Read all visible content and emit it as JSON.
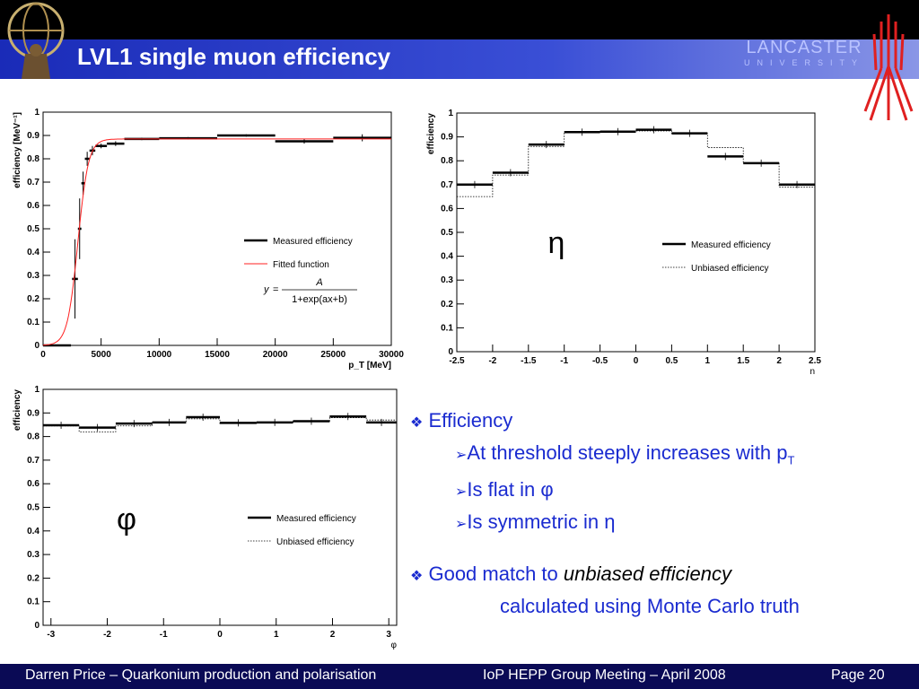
{
  "slide": {
    "title": "LVL1 single muon efficiency",
    "university": "LANCASTER",
    "university_sub": "UNIVERSITY",
    "colors": {
      "title_bar": "#2a3cc8",
      "bullets": "#1a2bd0",
      "footer": "#0a0a55",
      "fit_line": "#ff2020"
    }
  },
  "bullets": {
    "b1": "Efficiency",
    "b1_s1": "At threshold steeply increases with p",
    "b1_s1_sub": "T",
    "b1_s2": "Is flat in φ",
    "b1_s3": "Is symmetric in η",
    "b2_plain": "Good match to ",
    "b2_italic": "unbiased efficiency",
    "b2_line2": "calculated using Monte Carlo truth",
    "marker_diamond": "❖",
    "marker_arrow": "➢"
  },
  "footer": {
    "left": "Darren Price – Quarkonium production and polarisation",
    "center": "IoP HEPP Group Meeting – April 2008",
    "right": "Page 20"
  },
  "chart_data": [
    {
      "type": "scatter",
      "ylabel": "efficiency [MeV⁻¹]",
      "xlabel": "p_T [MeV]",
      "xlim": [
        0,
        30000
      ],
      "ylim": [
        0,
        1
      ],
      "xticks": [
        0,
        5000,
        10000,
        15000,
        20000,
        25000,
        30000
      ],
      "yticks": [
        0,
        0.1,
        0.2,
        0.3,
        0.4,
        0.5,
        0.6,
        0.7,
        0.8,
        0.9,
        1
      ],
      "legend": [
        "Measured efficiency",
        "Fitted function"
      ],
      "legend_position": "center-right",
      "formula": "y = A / (1 + exp(ax + b))",
      "formula_parts": {
        "y": "y",
        "eq": "=",
        "num": "A",
        "den": "1+exp(ax+b)"
      },
      "series": [
        {
          "name": "Measured efficiency",
          "points": [
            {
              "xlo": 0,
              "xhi": 2400,
              "y": 0.0,
              "err": 0.0
            },
            {
              "xlo": 2500,
              "xhi": 3000,
              "y": 0.285,
              "err": 0.17
            },
            {
              "xlo": 3000,
              "xhi": 3300,
              "y": 0.5,
              "err": 0.13
            },
            {
              "xlo": 3300,
              "xhi": 3600,
              "y": 0.695,
              "err": 0.05
            },
            {
              "xlo": 3600,
              "xhi": 4000,
              "y": 0.8,
              "err": 0.03
            },
            {
              "xlo": 4000,
              "xhi": 4500,
              "y": 0.835,
              "err": 0.02
            },
            {
              "xlo": 4500,
              "xhi": 5500,
              "y": 0.855,
              "err": 0.01
            },
            {
              "xlo": 5500,
              "xhi": 7000,
              "y": 0.865,
              "err": 0.01
            },
            {
              "xlo": 7000,
              "xhi": 10000,
              "y": 0.885,
              "err": 0.005
            },
            {
              "xlo": 10000,
              "xhi": 15000,
              "y": 0.888,
              "err": 0.005
            },
            {
              "xlo": 15000,
              "xhi": 20000,
              "y": 0.9,
              "err": 0.005
            },
            {
              "xlo": 20000,
              "xhi": 25000,
              "y": 0.875,
              "err": 0.01
            },
            {
              "xlo": 25000,
              "xhi": 30000,
              "y": 0.89,
              "err": 0.015
            }
          ]
        },
        {
          "name": "Fitted function",
          "A": 0.885,
          "a": -0.0022,
          "b": 6.6,
          "xrange": [
            0,
            30000
          ]
        }
      ]
    },
    {
      "type": "line",
      "ylabel": "efficiency",
      "xlabel": "η",
      "xlim": [
        -2.5,
        2.5
      ],
      "ylim": [
        0,
        1
      ],
      "xticks": [
        -2.5,
        -2,
        -1.5,
        -1,
        -0.5,
        0,
        0.5,
        1,
        1.5,
        2,
        2.5
      ],
      "yticks": [
        0,
        0.1,
        0.2,
        0.3,
        0.4,
        0.5,
        0.6,
        0.7,
        0.8,
        0.9,
        1
      ],
      "annotation": "η",
      "legend": [
        "Measured efficiency",
        "Unbiased efficiency"
      ],
      "legend_position": "center-right",
      "edges": [
        -2.5,
        -2,
        -1.5,
        -1,
        -0.5,
        0,
        0.5,
        1,
        1.5,
        2,
        2.5
      ],
      "series": [
        {
          "name": "Measured efficiency",
          "values": [
            0.7,
            0.75,
            0.868,
            0.92,
            0.922,
            0.93,
            0.915,
            0.818,
            0.79,
            0.7
          ]
        },
        {
          "name": "Unbiased efficiency",
          "values": [
            0.65,
            0.74,
            0.86,
            0.92,
            0.925,
            0.925,
            0.915,
            0.855,
            0.79,
            0.69
          ]
        }
      ]
    },
    {
      "type": "line",
      "ylabel": "efficiency",
      "xlabel": "φ",
      "xlim": [
        -3.14,
        3.14
      ],
      "ylim": [
        0,
        1
      ],
      "xticks": [
        -3,
        -2,
        -1,
        0,
        1,
        2,
        3
      ],
      "yticks": [
        0,
        0.1,
        0.2,
        0.3,
        0.4,
        0.5,
        0.6,
        0.7,
        0.8,
        0.9,
        1
      ],
      "annotation": "φ",
      "legend": [
        "Measured efficiency",
        "Unbiased efficiency"
      ],
      "legend_position": "center-right",
      "edges": [
        -3.14,
        -2.5,
        -1.85,
        -1.2,
        -0.6,
        0,
        0.65,
        1.3,
        1.95,
        2.6,
        3.14
      ],
      "series": [
        {
          "name": "Measured efficiency",
          "values": [
            0.848,
            0.838,
            0.855,
            0.86,
            0.882,
            0.858,
            0.86,
            0.865,
            0.885,
            0.86
          ]
        },
        {
          "name": "Unbiased efficiency",
          "values": [
            0.845,
            0.82,
            0.845,
            0.86,
            0.875,
            0.855,
            0.858,
            0.865,
            0.88,
            0.87
          ]
        }
      ]
    }
  ]
}
